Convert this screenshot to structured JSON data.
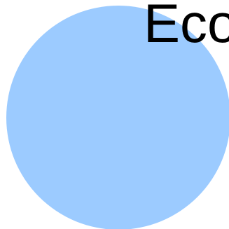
{
  "text": "Eco",
  "colors": {
    "circle": "#9ccbff",
    "text": "#000000",
    "background": "#ffffff"
  }
}
